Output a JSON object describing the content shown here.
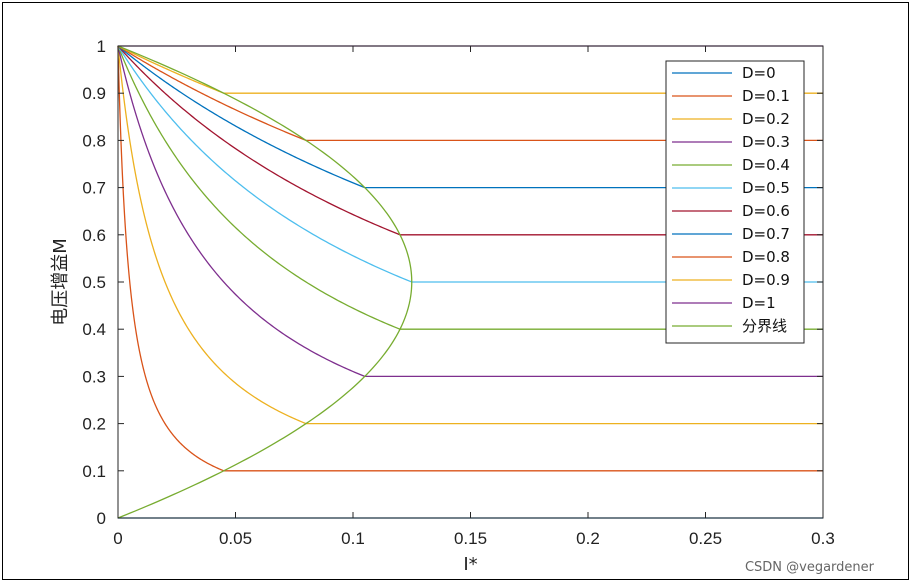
{
  "chart_data": {
    "type": "line",
    "title": "",
    "xlabel": "I*",
    "ylabel": "电压增益M",
    "xlim": [
      0,
      0.3
    ],
    "ylim": [
      0,
      1
    ],
    "xticks": [
      "0",
      "0.05",
      "0.1",
      "0.15",
      "0.2",
      "0.25",
      "0.3"
    ],
    "yticks": [
      "0",
      "0.1",
      "0.2",
      "0.3",
      "0.4",
      "0.5",
      "0.6",
      "0.7",
      "0.8",
      "0.9",
      "1"
    ],
    "grid": false,
    "legend_position": "top-right",
    "series": [
      {
        "name": "D=0",
        "D": 0,
        "color": "#0072BD"
      },
      {
        "name": "D=0.1",
        "D": 0.1,
        "color": "#D95319"
      },
      {
        "name": "D=0.2",
        "D": 0.2,
        "color": "#EDB120"
      },
      {
        "name": "D=0.3",
        "D": 0.3,
        "color": "#7E2F8E"
      },
      {
        "name": "D=0.4",
        "D": 0.4,
        "color": "#77AC30"
      },
      {
        "name": "D=0.5",
        "D": 0.5,
        "color": "#4DBEEE"
      },
      {
        "name": "D=0.6",
        "D": 0.6,
        "color": "#A2142F"
      },
      {
        "name": "D=0.7",
        "D": 0.7,
        "color": "#0072BD"
      },
      {
        "name": "D=0.8",
        "D": 0.8,
        "color": "#D95319"
      },
      {
        "name": "D=0.9",
        "D": 0.9,
        "color": "#EDB120"
      },
      {
        "name": "D=1",
        "D": 1,
        "color": "#7E2F8E"
      }
    ],
    "boundary": {
      "name": "分界线",
      "color": "#77AC30"
    }
  },
  "watermark": "CSDN @vegardener"
}
